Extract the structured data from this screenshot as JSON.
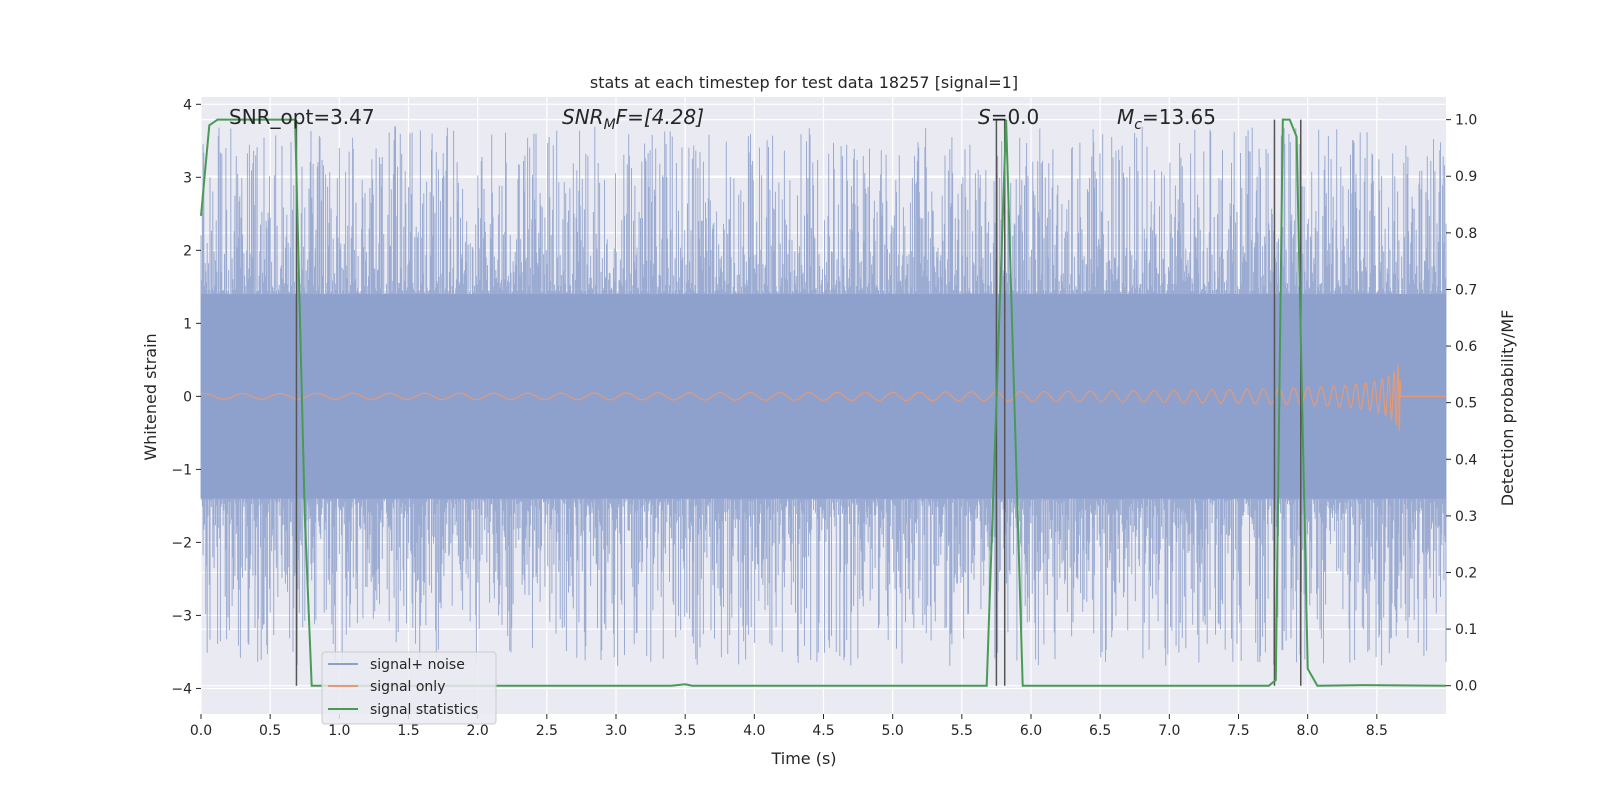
{
  "chart_data": {
    "type": "line",
    "title": "stats at each timestep for test data 18257 [signal=1]",
    "xlabel": "Time (s)",
    "ylabel": "Whitened strain",
    "y2label": "Detection probability/MF",
    "xlim": [
      0.0,
      9.0
    ],
    "ylim": [
      -4.35,
      4.1
    ],
    "y2lim": [
      -0.05,
      1.04
    ],
    "xticks": [
      "0.0",
      "0.5",
      "1.0",
      "1.5",
      "2.0",
      "2.5",
      "3.0",
      "3.5",
      "4.0",
      "4.5",
      "5.0",
      "5.5",
      "6.0",
      "6.5",
      "7.0",
      "7.5",
      "8.0",
      "8.5"
    ],
    "yticks": [
      "4",
      "3",
      "2",
      "1",
      "0",
      "−1",
      "−2",
      "−3",
      "−4"
    ],
    "y2ticks": [
      "1.0",
      "0.9",
      "0.8",
      "0.7",
      "0.6",
      "0.5",
      "0.4",
      "0.3",
      "0.2",
      "0.1",
      "0.0"
    ],
    "grid": true,
    "legend_position": "lower-left",
    "annotations": {
      "snr_opt": "SNR_opt=3.47",
      "snr_mf_base": "SNR",
      "snr_mf_sub": "M",
      "snr_mf_rest": "F=[4.28]",
      "s_italic": "S",
      "s_rest": "=0.0",
      "mc_base": "M",
      "mc_sub": "c",
      "mc_rest": "=13.65"
    },
    "series": [
      {
        "name": "signal+ noise",
        "color": "#8da0cb",
        "description_values": "noise band",
        "envelope_core": 1.4,
        "envelope_peak_max": 3.7,
        "envelope_peak_min": -3.7
      },
      {
        "name": "signal only",
        "color": "#e19a7a",
        "chirp_end_time": 8.67,
        "chirp_peak_amplitude": 0.6
      },
      {
        "name": "signal statistics",
        "color": "#4a9a56",
        "x": [
          0.0,
          0.06,
          0.12,
          0.2,
          0.3,
          0.4,
          0.5,
          0.6,
          0.68,
          0.75,
          0.8,
          3.4,
          3.5,
          3.55,
          5.68,
          5.82,
          5.94,
          7.72,
          7.77,
          7.82,
          7.87,
          7.92,
          8.0,
          8.07,
          8.4,
          9.0
        ],
        "y": [
          0.83,
          0.99,
          1.0,
          1.0,
          1.0,
          1.0,
          1.0,
          1.0,
          1.0,
          0.3,
          0.0,
          0.0,
          0.0025,
          0.0,
          0.0,
          1.0,
          0.0,
          0.0,
          0.01,
          1.0,
          1.0,
          0.97,
          0.03,
          0.0,
          0.001,
          0.0
        ]
      }
    ],
    "vertical_markers": [
      0.69,
      5.75,
      5.81,
      7.76,
      7.95
    ]
  }
}
